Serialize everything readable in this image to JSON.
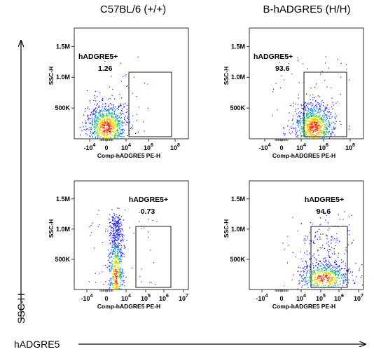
{
  "columns": [
    "C57BL/6 (+/+)",
    "B-hADGRE5 (H/H)"
  ],
  "axes": {
    "global_y_label": "SSC-H",
    "global_x_label": "hADGRE5",
    "panel_y_label": "SSC-H",
    "panel_x_label": "Comp-hADGRE5 PE-H",
    "y_ticks": [
      "500K",
      "1.0M",
      "1.5M"
    ],
    "x_tick_bases": [
      "-10",
      "0",
      "10",
      "10",
      "10",
      "10"
    ],
    "x_tick_exponents": [
      "4",
      "",
      "4",
      "5",
      "6",
      "7"
    ]
  },
  "chart_data": [
    {
      "type": "scatter",
      "sample": "C57BL/6 (+/+)",
      "row": 1,
      "xlabel": "Comp-hADGRE5 PE-H",
      "ylabel": "SSC-H",
      "ylim": [
        0,
        1800000
      ],
      "gate": {
        "label": "hADGRE5+",
        "value": "1.26",
        "x_range": [
          10000,
          10000000
        ],
        "y_range": [
          30000,
          1200000
        ]
      },
      "population": {
        "x_center": 1000,
        "y_center": 350000
      },
      "x_scale": "biexponential",
      "yticks": [
        "500K",
        "1.0M",
        "1.5M"
      ],
      "xticks": [
        "-10^4",
        "0",
        "10^4",
        "10^6",
        "10^8"
      ]
    },
    {
      "type": "scatter",
      "sample": "B-hADGRE5 (H/H)",
      "row": 1,
      "xlabel": "Comp-hADGRE5 PE-H",
      "ylabel": "SSC-H",
      "ylim": [
        0,
        1800000
      ],
      "gate": {
        "label": "hADGRE5+",
        "value": "93.6",
        "x_range": [
          10000,
          10000000
        ],
        "y_range": [
          30000,
          1200000
        ]
      },
      "population": {
        "x_center": 60000,
        "y_center": 330000
      },
      "x_scale": "biexponential",
      "yticks": [
        "500K",
        "1.0M",
        "1.5M"
      ],
      "xticks": [
        "-10^4",
        "0",
        "10^4",
        "10^6",
        "10^8"
      ]
    },
    {
      "type": "scatter",
      "sample": "C57BL/6 (+/+)",
      "row": 2,
      "xlabel": "Comp-hADGRE5 PE-H",
      "ylabel": "SSC-H",
      "ylim": [
        0,
        1800000
      ],
      "gate": {
        "label": "hADGRE5+",
        "value": "0.73",
        "x_range": [
          10000,
          10000000
        ],
        "y_range": [
          20000,
          1100000
        ]
      },
      "population": {
        "x_center": 800,
        "y_center": 250000
      },
      "x_scale": "biexponential",
      "yticks": [
        "500K",
        "1.0M",
        "1.5M"
      ],
      "xticks": [
        "-10^4",
        "0",
        "10^4",
        "10^5",
        "10^6",
        "10^7"
      ]
    },
    {
      "type": "scatter",
      "sample": "B-hADGRE5 (H/H)",
      "row": 2,
      "xlabel": "Comp-hADGRE5 PE-H",
      "ylabel": "SSC-H",
      "ylim": [
        0,
        1800000
      ],
      "gate": {
        "label": "hADGRE5+",
        "value": "94.6",
        "x_range": [
          10000,
          10000000
        ],
        "y_range": [
          20000,
          1100000
        ]
      },
      "population": {
        "x_center": 100000,
        "y_center": 250000
      },
      "x_scale": "biexponential",
      "yticks": [
        "500K",
        "1.0M",
        "1.5M"
      ],
      "xticks": [
        "-10^4",
        "0",
        "10^4",
        "10^5",
        "10^6",
        "10^7"
      ]
    }
  ]
}
